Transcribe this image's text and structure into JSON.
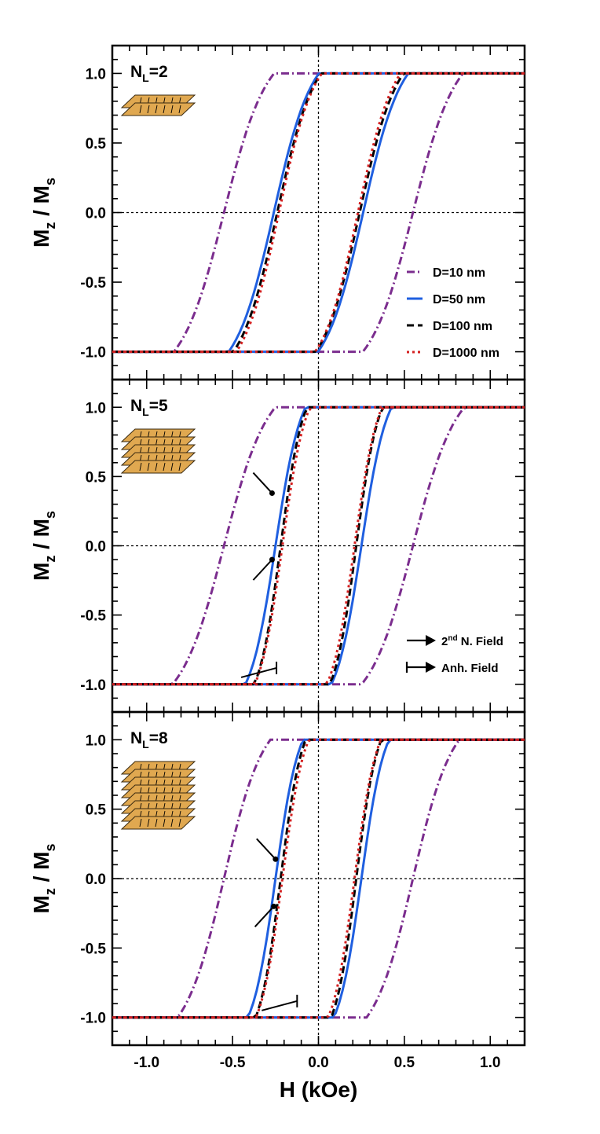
{
  "chart_data": [
    {
      "type": "line",
      "panel_label": "N",
      "panel_sub": "L",
      "panel_value": "=2",
      "layers": 2,
      "ylabel_main": "M",
      "ylabel_sub1": "z",
      "ylabel_mid": " / M",
      "ylabel_sub2": "s",
      "xlim": [
        -1.2,
        1.2
      ],
      "ylim": [
        -1.2,
        1.2
      ],
      "yticks": [
        "1.0",
        "0.5",
        "0.0",
        "-0.5",
        "-1.0"
      ],
      "ytick_values": [
        1.0,
        0.5,
        0.0,
        -0.5,
        -1.0
      ],
      "legend": [
        "D=10 nm",
        "D=50 nm",
        "D=100 nm",
        "D=1000 nm"
      ],
      "series": [
        {
          "name": "D=10 nm",
          "color": "#7b2d8e",
          "style": "dashdot",
          "hc": 0.55,
          "width": 0.4
        },
        {
          "name": "D=50 nm",
          "color": "#1f5fe0",
          "style": "solid",
          "hc": 0.26,
          "width": 0.36
        },
        {
          "name": "D=100 nm",
          "color": "#000000",
          "style": "dash",
          "hc": 0.24,
          "width": 0.35
        },
        {
          "name": "D=1000 nm",
          "color": "#d42020",
          "style": "dot",
          "hc": 0.23,
          "width": 0.34
        }
      ]
    },
    {
      "type": "line",
      "panel_label": "N",
      "panel_sub": "L",
      "panel_value": "=5",
      "layers": 5,
      "ylabel_main": "M",
      "ylabel_sub1": "z",
      "ylabel_mid": " / M",
      "ylabel_sub2": "s",
      "xlim": [
        -1.2,
        1.2
      ],
      "ylim": [
        -1.2,
        1.2
      ],
      "yticks": [
        "1.0",
        "0.5",
        "0.0",
        "-0.5",
        "-1.0"
      ],
      "ytick_values": [
        1.0,
        0.5,
        0.0,
        -0.5,
        -1.0
      ],
      "legend_arrows": [
        "2nd N. Field",
        "Anh. Field"
      ],
      "legend_arrow_main": "2",
      "legend_arrow_sup": "nd",
      "legend_arrow_rest": " N. Field",
      "series": [
        {
          "name": "D=10 nm",
          "color": "#7b2d8e",
          "style": "dashdot",
          "hc": 0.55,
          "width": 0.41
        },
        {
          "name": "D=50 nm",
          "color": "#1f5fe0",
          "style": "solid",
          "hc": 0.25,
          "width": 0.24
        },
        {
          "name": "D=100 nm",
          "color": "#000000",
          "style": "dash",
          "hc": 0.22,
          "width": 0.21
        },
        {
          "name": "D=1000 nm",
          "color": "#d42020",
          "style": "dot",
          "hc": 0.21,
          "width": 0.22
        }
      ]
    },
    {
      "type": "line",
      "panel_label": "N",
      "panel_sub": "L",
      "panel_value": "=8",
      "layers": 8,
      "ylabel_main": "M",
      "ylabel_sub1": "z",
      "ylabel_mid": " / M",
      "ylabel_sub2": "s",
      "xlim": [
        -1.2,
        1.2
      ],
      "ylim": [
        -1.2,
        1.2
      ],
      "yticks": [
        "1.0",
        "0.5",
        "0.0",
        "-0.5",
        "-1.0"
      ],
      "ytick_values": [
        1.0,
        0.5,
        0.0,
        -0.5,
        -1.0
      ],
      "xticks": [
        "-1.0",
        "-0.5",
        "0.0",
        "0.5",
        "1.0"
      ],
      "xtick_values": [
        -1.0,
        -0.5,
        0.0,
        0.5,
        1.0
      ],
      "xlabel": "H (kOe)",
      "series": [
        {
          "name": "D=10 nm",
          "color": "#7b2d8e",
          "style": "dashdot",
          "hc": 0.55,
          "width": 0.37
        },
        {
          "name": "D=50 nm",
          "color": "#1f5fe0",
          "style": "solid",
          "hc": 0.25,
          "width": 0.22
        },
        {
          "name": "D=100 nm",
          "color": "#000000",
          "style": "dash",
          "hc": 0.22,
          "width": 0.2
        },
        {
          "name": "D=1000 nm",
          "color": "#d42020",
          "style": "dot",
          "hc": 0.21,
          "width": 0.21
        }
      ]
    }
  ]
}
